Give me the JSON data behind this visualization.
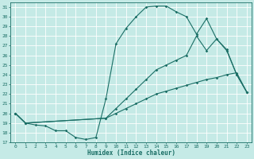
{
  "xlabel": "Humidex (Indice chaleur)",
  "xlim": [
    -0.5,
    23.5
  ],
  "ylim": [
    17,
    31.5
  ],
  "xticks": [
    0,
    1,
    2,
    3,
    4,
    5,
    6,
    7,
    8,
    9,
    10,
    11,
    12,
    13,
    14,
    15,
    16,
    17,
    18,
    19,
    20,
    21,
    22,
    23
  ],
  "yticks": [
    17,
    18,
    19,
    20,
    21,
    22,
    23,
    24,
    25,
    26,
    27,
    28,
    29,
    30,
    31
  ],
  "bg_color": "#c5eae6",
  "grid_color": "#ffffff",
  "line_color": "#1a6e65",
  "curve1_x": [
    0,
    1,
    2,
    3,
    4,
    5,
    6,
    7,
    8,
    9,
    10,
    11,
    12,
    13,
    14,
    15,
    16,
    17,
    18,
    19,
    20,
    21,
    22,
    23
  ],
  "curve1_y": [
    20.0,
    19.0,
    18.8,
    18.7,
    18.2,
    18.2,
    17.5,
    17.3,
    17.5,
    21.5,
    27.2,
    28.8,
    30.0,
    31.0,
    31.1,
    31.1,
    30.5,
    30.0,
    28.2,
    29.8,
    27.7,
    26.6,
    24.0,
    22.2
  ],
  "curve2_x": [
    0,
    1,
    9,
    10,
    11,
    12,
    13,
    14,
    15,
    16,
    17,
    18,
    19,
    20,
    21,
    22,
    23
  ],
  "curve2_y": [
    20.0,
    19.0,
    19.5,
    20.0,
    20.5,
    21.0,
    21.5,
    22.0,
    22.3,
    22.6,
    22.9,
    23.2,
    23.5,
    23.7,
    24.0,
    24.2,
    22.2
  ],
  "curve3_x": [
    0,
    1,
    9,
    10,
    11,
    12,
    13,
    14,
    15,
    16,
    17,
    18,
    19,
    20,
    21,
    22,
    23
  ],
  "curve3_y": [
    20.0,
    19.0,
    19.5,
    20.5,
    21.5,
    22.5,
    23.5,
    24.5,
    25.0,
    25.5,
    26.0,
    28.0,
    26.5,
    27.7,
    26.5,
    24.0,
    22.2
  ]
}
